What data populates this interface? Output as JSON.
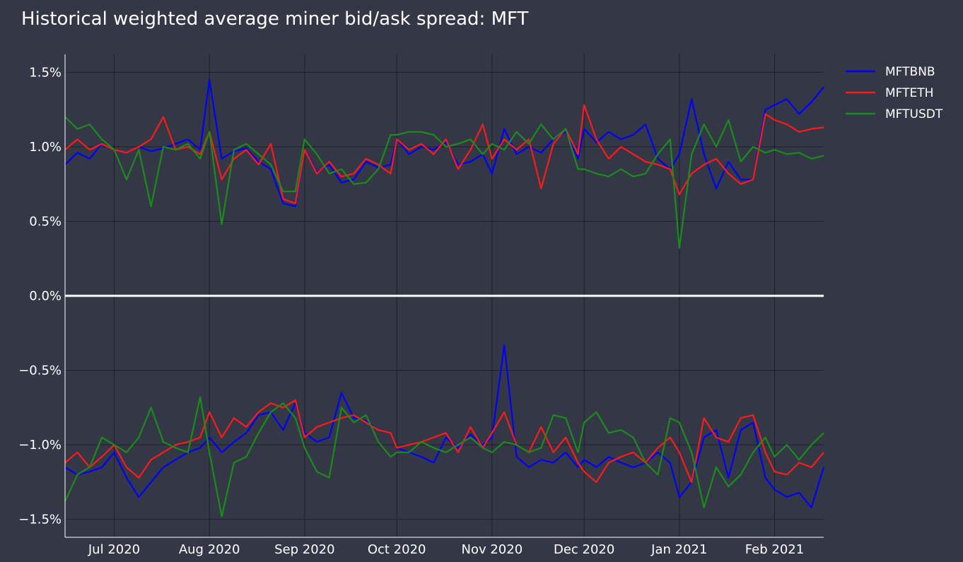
{
  "chart_data": {
    "type": "line",
    "title": "Historical weighted average miner bid/ask spread: MFT",
    "background_color": "#343746",
    "grid": true,
    "legend_placement": "top-right",
    "x_range": [
      "2020-06-15",
      "2021-02-17"
    ],
    "y_range": [
      -1.62,
      1.62
    ],
    "y_unit": "%",
    "x_ticks": [
      {
        "date": "2020-07-01",
        "label": "Jul 2020"
      },
      {
        "date": "2020-08-01",
        "label": "Aug 2020"
      },
      {
        "date": "2020-09-01",
        "label": "Sep 2020"
      },
      {
        "date": "2020-10-01",
        "label": "Oct 2020"
      },
      {
        "date": "2020-11-01",
        "label": "Nov 2020"
      },
      {
        "date": "2020-12-01",
        "label": "Dec 2020"
      },
      {
        "date": "2021-01-01",
        "label": "Jan 2021"
      },
      {
        "date": "2021-02-01",
        "label": "Feb 2021"
      }
    ],
    "y_ticks": [
      {
        "value": 1.5,
        "label": "1.5%"
      },
      {
        "value": 1.0,
        "label": "1.0%"
      },
      {
        "value": 0.5,
        "label": "0.5%"
      },
      {
        "value": 0.0,
        "label": "0.0%"
      },
      {
        "value": -0.5,
        "label": "−0.5%"
      },
      {
        "value": -1.0,
        "label": "−1.0%"
      },
      {
        "value": -1.5,
        "label": "−1.5%"
      }
    ],
    "series": [
      {
        "name": "MFTBNB",
        "color": "#0000ff",
        "x": [
          "2020-06-15",
          "2020-06-19",
          "2020-06-23",
          "2020-06-27",
          "2020-07-01",
          "2020-07-05",
          "2020-07-09",
          "2020-07-13",
          "2020-07-17",
          "2020-07-21",
          "2020-07-25",
          "2020-07-29",
          "2020-08-01",
          "2020-08-05",
          "2020-08-09",
          "2020-08-13",
          "2020-08-17",
          "2020-08-21",
          "2020-08-25",
          "2020-08-29",
          "2020-09-01",
          "2020-09-05",
          "2020-09-09",
          "2020-09-13",
          "2020-09-17",
          "2020-09-21",
          "2020-09-25",
          "2020-09-29",
          "2020-10-01",
          "2020-10-05",
          "2020-10-09",
          "2020-10-13",
          "2020-10-17",
          "2020-10-21",
          "2020-10-25",
          "2020-10-29",
          "2020-11-01",
          "2020-11-05",
          "2020-11-09",
          "2020-11-13",
          "2020-11-17",
          "2020-11-21",
          "2020-11-25",
          "2020-11-29",
          "2020-12-01",
          "2020-12-05",
          "2020-12-09",
          "2020-12-13",
          "2020-12-17",
          "2020-12-21",
          "2020-12-25",
          "2020-12-29",
          "2021-01-01",
          "2021-01-05",
          "2021-01-09",
          "2021-01-13",
          "2021-01-17",
          "2021-01-21",
          "2021-01-25",
          "2021-01-29",
          "2021-02-01",
          "2021-02-05",
          "2021-02-09",
          "2021-02-13",
          "2021-02-17"
        ],
        "upper": [
          0.88,
          0.96,
          0.92,
          1.02,
          0.98,
          0.96,
          1.0,
          0.97,
          0.99,
          1.02,
          1.05,
          0.98,
          1.45,
          0.92,
          0.97,
          0.99,
          0.9,
          0.85,
          0.62,
          0.6,
          0.98,
          0.83,
          0.88,
          0.76,
          0.78,
          0.9,
          0.86,
          0.88,
          1.05,
          0.95,
          1.0,
          0.98,
          1.03,
          0.88,
          0.9,
          0.95,
          0.82,
          1.12,
          0.95,
          1.0,
          0.96,
          1.05,
          1.1,
          0.92,
          1.12,
          1.03,
          1.1,
          1.05,
          1.08,
          1.15,
          0.92,
          0.85,
          0.95,
          1.32,
          0.95,
          0.72,
          0.9,
          0.78,
          0.78,
          1.25,
          1.28,
          1.32,
          1.22,
          1.3,
          1.4
        ],
        "lower": [
          -1.15,
          -1.2,
          -1.18,
          -1.15,
          -1.05,
          -1.22,
          -1.35,
          -1.25,
          -1.15,
          -1.1,
          -1.05,
          -1.02,
          -0.95,
          -1.05,
          -0.98,
          -0.92,
          -0.8,
          -0.78,
          -0.9,
          -0.72,
          -0.92,
          -0.98,
          -0.95,
          -0.65,
          -0.82,
          -0.84,
          -0.9,
          -0.92,
          -1.02,
          -1.05,
          -1.08,
          -1.12,
          -0.95,
          -1.02,
          -0.93,
          -1.0,
          -0.95,
          -0.33,
          -1.08,
          -1.15,
          -1.1,
          -1.12,
          -1.05,
          -1.15,
          -1.1,
          -1.15,
          -1.08,
          -1.12,
          -1.15,
          -1.12,
          -1.05,
          -1.12,
          -1.35,
          -1.25,
          -0.95,
          -0.9,
          -1.22,
          -0.9,
          -0.85,
          -1.22,
          -1.3,
          -1.35,
          -1.32,
          -1.42,
          -1.15
        ]
      },
      {
        "name": "MFTETH",
        "color": "#ff1a1a",
        "x": [
          "2020-06-15",
          "2020-06-19",
          "2020-06-23",
          "2020-06-27",
          "2020-07-01",
          "2020-07-05",
          "2020-07-09",
          "2020-07-13",
          "2020-07-17",
          "2020-07-21",
          "2020-07-25",
          "2020-07-29",
          "2020-08-01",
          "2020-08-05",
          "2020-08-09",
          "2020-08-13",
          "2020-08-17",
          "2020-08-21",
          "2020-08-25",
          "2020-08-29",
          "2020-09-01",
          "2020-09-05",
          "2020-09-09",
          "2020-09-13",
          "2020-09-17",
          "2020-09-21",
          "2020-09-25",
          "2020-09-29",
          "2020-10-01",
          "2020-10-05",
          "2020-10-09",
          "2020-10-13",
          "2020-10-17",
          "2020-10-21",
          "2020-10-25",
          "2020-10-29",
          "2020-11-01",
          "2020-11-05",
          "2020-11-09",
          "2020-11-13",
          "2020-11-17",
          "2020-11-21",
          "2020-11-25",
          "2020-11-29",
          "2020-12-01",
          "2020-12-05",
          "2020-12-09",
          "2020-12-13",
          "2020-12-17",
          "2020-12-21",
          "2020-12-25",
          "2020-12-29",
          "2021-01-01",
          "2021-01-05",
          "2021-01-09",
          "2021-01-13",
          "2021-01-17",
          "2021-01-21",
          "2021-01-25",
          "2021-01-29",
          "2021-02-01",
          "2021-02-05",
          "2021-02-09",
          "2021-02-13",
          "2021-02-17"
        ],
        "upper": [
          0.98,
          1.05,
          0.98,
          1.02,
          0.98,
          0.96,
          1.0,
          1.05,
          1.2,
          0.98,
          1.0,
          0.95,
          1.1,
          0.78,
          0.92,
          0.98,
          0.88,
          1.02,
          0.65,
          0.62,
          0.98,
          0.82,
          0.9,
          0.8,
          0.82,
          0.92,
          0.88,
          0.82,
          1.05,
          0.98,
          1.02,
          0.95,
          1.05,
          0.85,
          0.98,
          1.15,
          0.92,
          1.05,
          0.98,
          1.05,
          0.72,
          1.02,
          1.12,
          0.95,
          1.28,
          1.05,
          0.92,
          1.0,
          0.95,
          0.9,
          0.88,
          0.85,
          0.68,
          0.82,
          0.88,
          0.92,
          0.82,
          0.75,
          0.78,
          1.22,
          1.18,
          1.15,
          1.1,
          1.12,
          1.13
        ],
        "lower": [
          -1.12,
          -1.05,
          -1.15,
          -1.08,
          -1.0,
          -1.15,
          -1.22,
          -1.1,
          -1.05,
          -1.0,
          -0.98,
          -0.95,
          -0.78,
          -0.95,
          -0.82,
          -0.88,
          -0.78,
          -0.72,
          -0.75,
          -0.7,
          -0.95,
          -0.88,
          -0.85,
          -0.82,
          -0.8,
          -0.85,
          -0.9,
          -0.92,
          -1.02,
          -1.0,
          -0.98,
          -0.95,
          -0.92,
          -1.05,
          -0.88,
          -1.02,
          -0.92,
          -0.78,
          -1.0,
          -1.05,
          -0.88,
          -1.05,
          -0.95,
          -1.12,
          -1.18,
          -1.25,
          -1.12,
          -1.08,
          -1.05,
          -1.12,
          -1.02,
          -0.95,
          -1.05,
          -1.25,
          -0.82,
          -0.95,
          -0.98,
          -0.82,
          -0.8,
          -1.05,
          -1.18,
          -1.2,
          -1.12,
          -1.15,
          -1.05
        ]
      },
      {
        "name": "MFTUSDT",
        "color": "#1a8c1a",
        "x": [
          "2020-06-15",
          "2020-06-19",
          "2020-06-23",
          "2020-06-27",
          "2020-07-01",
          "2020-07-05",
          "2020-07-09",
          "2020-07-13",
          "2020-07-17",
          "2020-07-21",
          "2020-07-25",
          "2020-07-29",
          "2020-08-01",
          "2020-08-05",
          "2020-08-09",
          "2020-08-13",
          "2020-08-17",
          "2020-08-21",
          "2020-08-25",
          "2020-08-29",
          "2020-09-01",
          "2020-09-05",
          "2020-09-09",
          "2020-09-13",
          "2020-09-17",
          "2020-09-21",
          "2020-09-25",
          "2020-09-29",
          "2020-10-01",
          "2020-10-05",
          "2020-10-09",
          "2020-10-13",
          "2020-10-17",
          "2020-10-21",
          "2020-10-25",
          "2020-10-29",
          "2020-11-01",
          "2020-11-05",
          "2020-11-09",
          "2020-11-13",
          "2020-11-17",
          "2020-11-21",
          "2020-11-25",
          "2020-11-29",
          "2020-12-01",
          "2020-12-05",
          "2020-12-09",
          "2020-12-13",
          "2020-12-17",
          "2020-12-21",
          "2020-12-25",
          "2020-12-29",
          "2021-01-01",
          "2021-01-05",
          "2021-01-09",
          "2021-01-13",
          "2021-01-17",
          "2021-01-21",
          "2021-01-25",
          "2021-01-29",
          "2021-02-01",
          "2021-02-05",
          "2021-02-09",
          "2021-02-13",
          "2021-02-17"
        ],
        "upper": [
          1.2,
          1.12,
          1.15,
          1.05,
          0.98,
          0.78,
          0.98,
          0.6,
          1.0,
          0.98,
          1.02,
          0.92,
          1.1,
          0.48,
          0.98,
          1.02,
          0.95,
          0.88,
          0.7,
          0.7,
          1.05,
          0.95,
          0.82,
          0.85,
          0.75,
          0.76,
          0.85,
          1.08,
          1.08,
          1.1,
          1.1,
          1.08,
          1.0,
          1.02,
          1.05,
          0.95,
          1.02,
          0.98,
          1.1,
          1.02,
          1.15,
          1.05,
          1.12,
          0.85,
          0.85,
          0.82,
          0.8,
          0.85,
          0.8,
          0.82,
          0.95,
          1.05,
          0.32,
          0.95,
          1.15,
          1.0,
          1.18,
          0.9,
          1.0,
          0.96,
          0.98,
          0.95,
          0.96,
          0.92,
          0.94
        ],
        "lower": [
          -1.38,
          -1.2,
          -1.15,
          -0.95,
          -1.0,
          -1.05,
          -0.95,
          -0.75,
          -0.98,
          -1.02,
          -1.05,
          -0.68,
          -1.05,
          -1.48,
          -1.12,
          -1.08,
          -0.92,
          -0.78,
          -0.72,
          -0.82,
          -1.02,
          -1.18,
          -1.22,
          -0.75,
          -0.85,
          -0.8,
          -0.98,
          -1.08,
          -1.05,
          -1.05,
          -0.98,
          -1.02,
          -1.05,
          -1.0,
          -0.95,
          -1.02,
          -1.05,
          -0.98,
          -1.0,
          -1.05,
          -1.02,
          -0.8,
          -0.82,
          -1.05,
          -0.85,
          -0.78,
          -0.92,
          -0.9,
          -0.95,
          -1.12,
          -1.2,
          -0.82,
          -0.85,
          -1.05,
          -1.42,
          -1.15,
          -1.28,
          -1.2,
          -1.05,
          -0.95,
          -1.08,
          -1.0,
          -1.1,
          -1.0,
          -0.92
        ]
      }
    ]
  }
}
